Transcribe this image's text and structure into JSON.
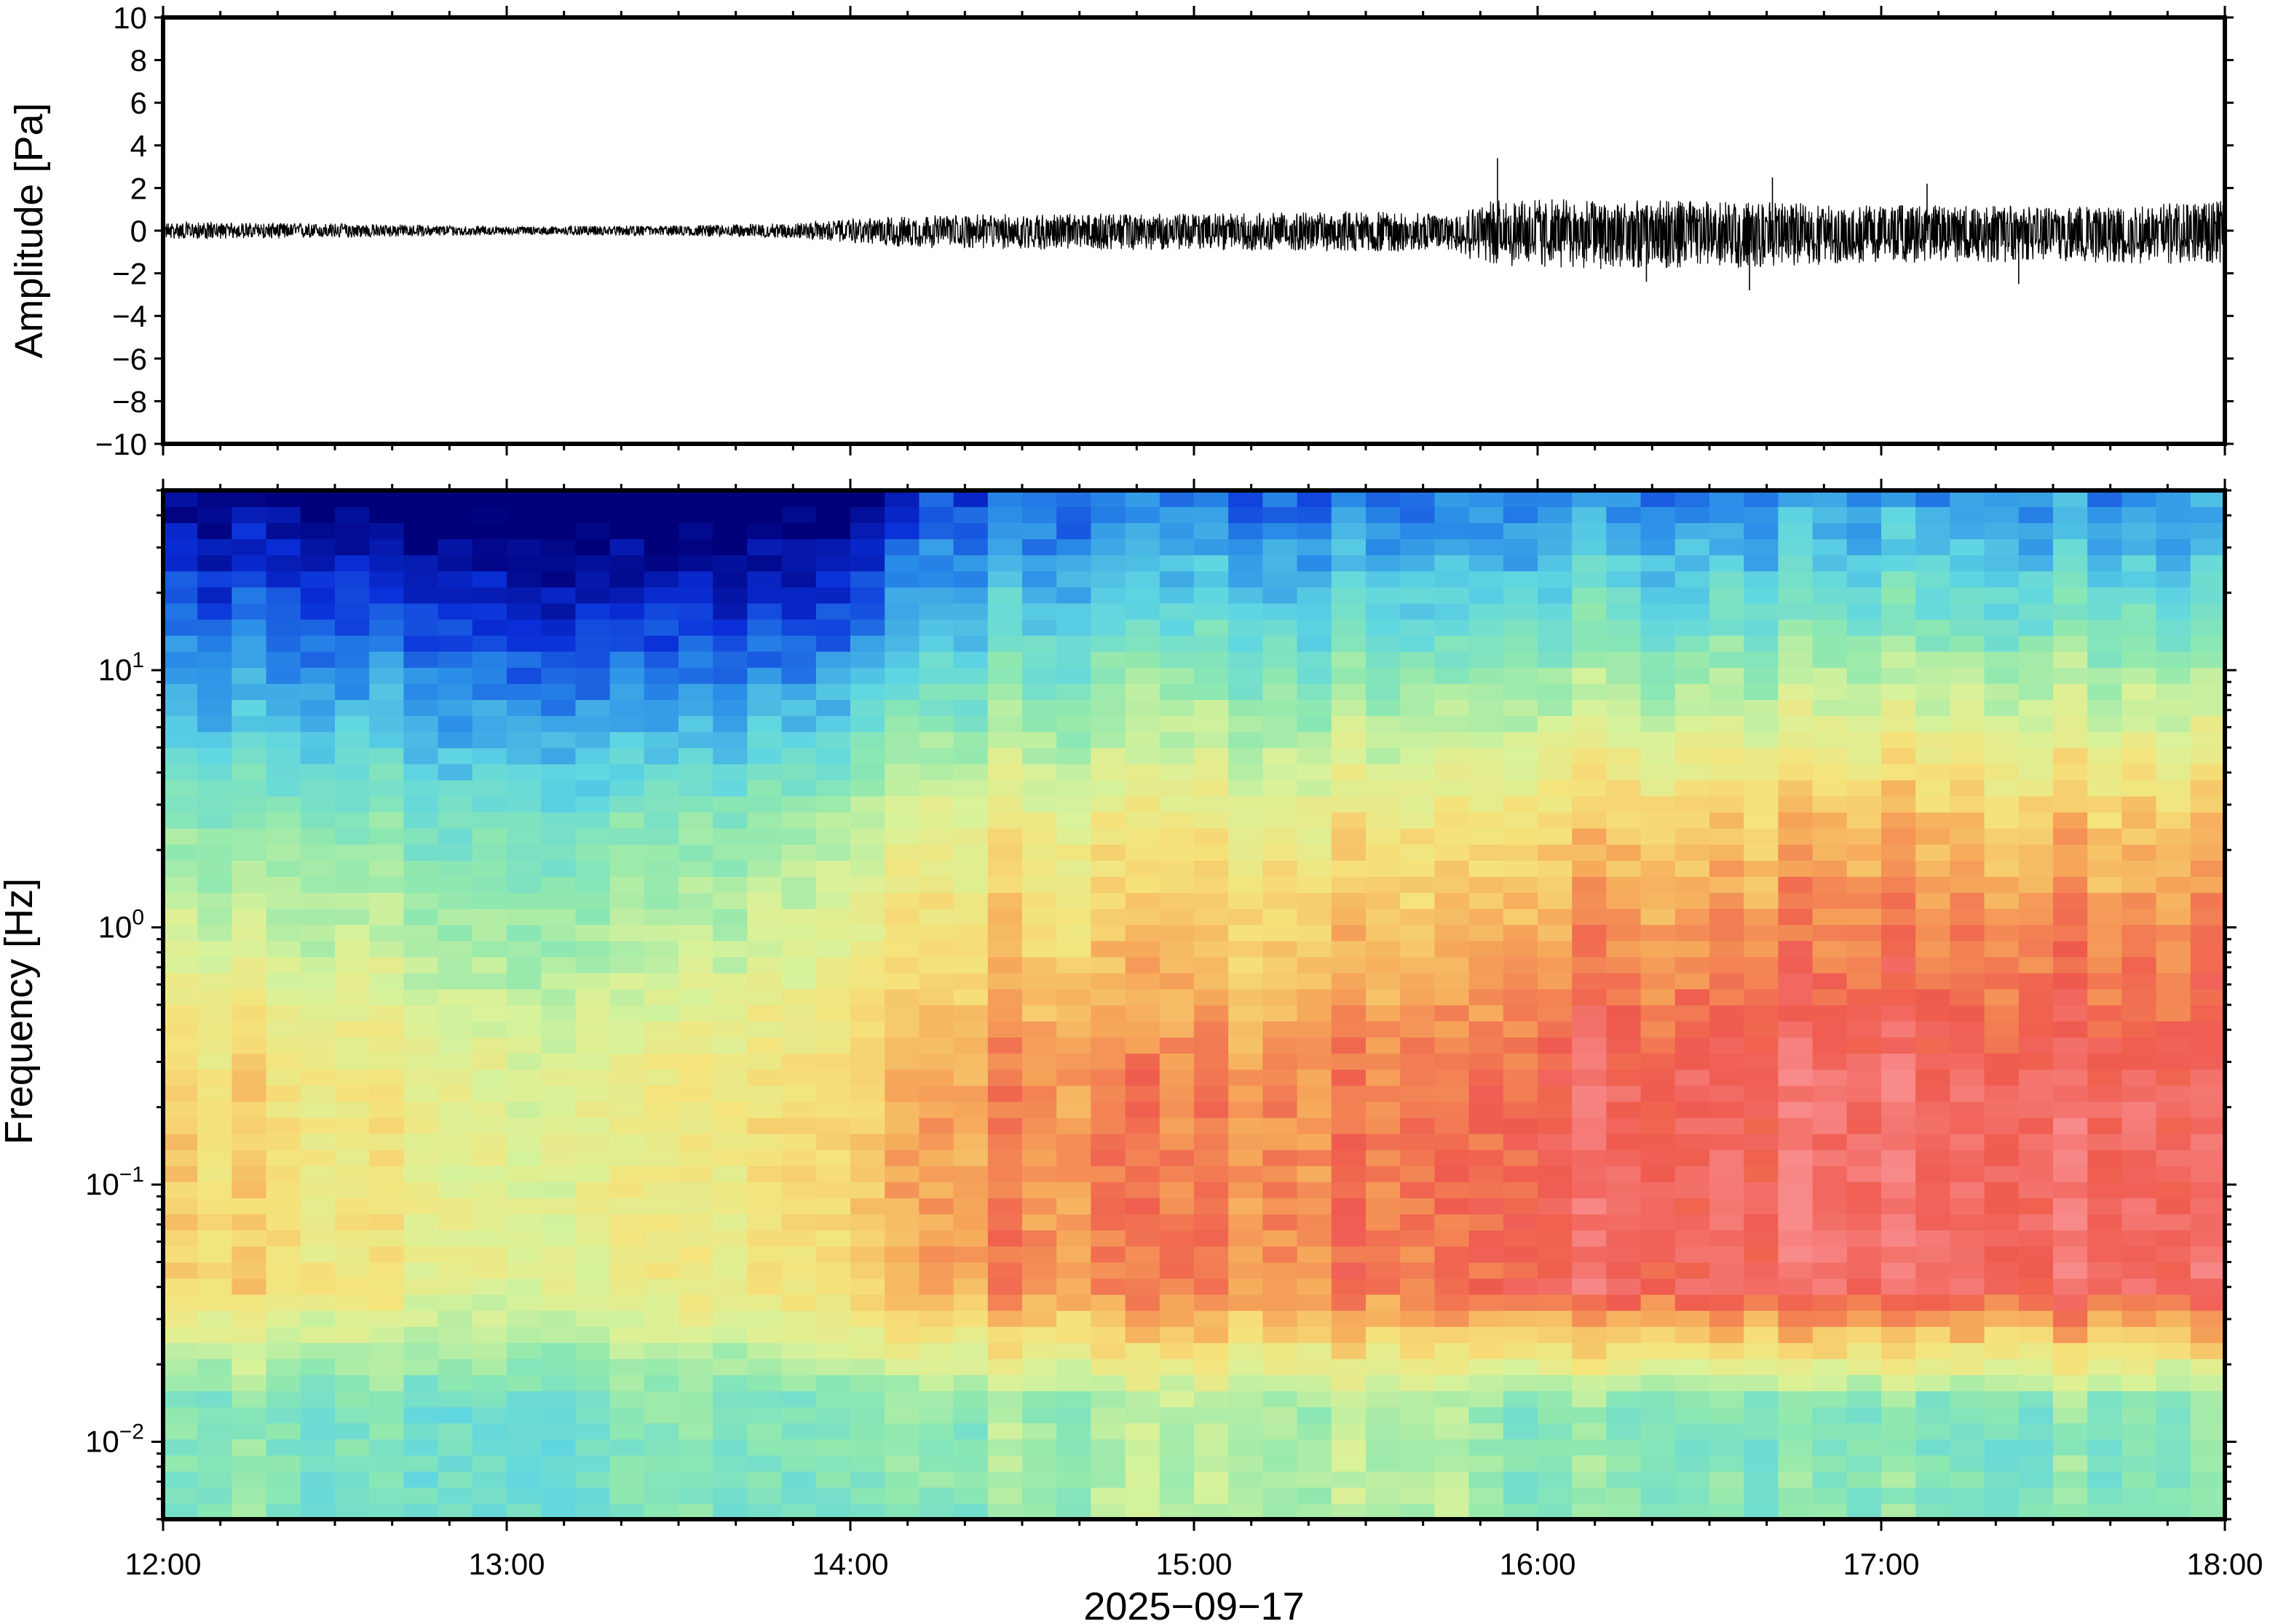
{
  "chart_data": [
    {
      "type": "line",
      "panel": "waveform",
      "ylabel": "Amplitude [Pa]",
      "ylim": [
        -10,
        10
      ],
      "yticks": [
        "10",
        "8",
        "6",
        "4",
        "2",
        "0",
        "−2",
        "−4",
        "−6",
        "−8",
        "−10"
      ],
      "ytick_values": [
        10,
        8,
        6,
        4,
        2,
        0,
        -2,
        -4,
        -6,
        -8,
        -10
      ],
      "xlim": [
        "12:00",
        "18:00"
      ],
      "line_color": "#000000",
      "envelope": {
        "time": [
          "12:00",
          "12:30",
          "13:00",
          "13:30",
          "13:50",
          "14:10",
          "14:30",
          "15:00",
          "15:30",
          "15:45",
          "15:50",
          "16:00",
          "16:30",
          "17:00",
          "17:30",
          "18:00"
        ],
        "amplitude_max": [
          0.4,
          0.35,
          0.2,
          0.25,
          0.35,
          0.7,
          0.8,
          0.8,
          0.9,
          0.8,
          1.4,
          1.5,
          1.4,
          1.2,
          1.2,
          1.4
        ],
        "amplitude_min": [
          -0.4,
          -0.35,
          -0.2,
          -0.25,
          -0.35,
          -0.8,
          -0.9,
          -0.9,
          -1.0,
          -0.9,
          -1.6,
          -1.8,
          -1.8,
          -1.5,
          -1.5,
          -1.6
        ]
      },
      "spikes": [
        {
          "time": "15:53",
          "value": 3.4
        },
        {
          "time": "16:19",
          "value": -2.4
        },
        {
          "time": "16:37",
          "value": -2.8
        },
        {
          "time": "16:41",
          "value": 2.5
        },
        {
          "time": "17:24",
          "value": -2.5
        },
        {
          "time": "17:08",
          "value": 2.2
        }
      ]
    },
    {
      "type": "heatmap",
      "panel": "spectrogram",
      "ylabel": "Frequency [Hz]",
      "yscale": "log",
      "ylim": [
        0.005,
        50
      ],
      "yticks": [
        {
          "base": "10",
          "exp": "−2",
          "value": 0.01
        },
        {
          "base": "10",
          "exp": "−1",
          "value": 0.1
        },
        {
          "base": "10",
          "exp": "0",
          "value": 1
        },
        {
          "base": "10",
          "exp": "1",
          "value": 10
        }
      ],
      "xlabel": "2025−09−17",
      "xticks": [
        "12:00",
        "13:00",
        "14:00",
        "15:00",
        "16:00",
        "17:00",
        "18:00"
      ],
      "xlim": [
        "12:00",
        "18:00"
      ],
      "colormap": "jet",
      "colormap_stops": [
        "#00007a",
        "#0a2fd9",
        "#2a8de8",
        "#5fd6e2",
        "#8ee8b0",
        "#d9f29a",
        "#f6e27a",
        "#f6a85a",
        "#ef5a4e",
        "#f88a8a"
      ],
      "value_range": [
        0,
        1
      ],
      "time_bins": 60,
      "freq_bins": 64,
      "profile_times": [
        "12:00",
        "13:00",
        "13:30",
        "14:00",
        "14:15",
        "15:00",
        "15:45",
        "16:00",
        "17:00",
        "18:00"
      ],
      "high_freq_level": [
        0.18,
        0.14,
        0.08,
        0.16,
        0.32,
        0.35,
        0.36,
        0.4,
        0.4,
        0.42
      ],
      "mid_freq_level": [
        0.45,
        0.42,
        0.4,
        0.52,
        0.6,
        0.63,
        0.65,
        0.72,
        0.74,
        0.74
      ],
      "low_freq_peak_level": [
        0.7,
        0.6,
        0.6,
        0.7,
        0.8,
        0.82,
        0.85,
        0.93,
        0.94,
        0.95
      ],
      "lowest_band_level": [
        0.42,
        0.4,
        0.4,
        0.42,
        0.45,
        0.5,
        0.5,
        0.45,
        0.42,
        0.45
      ]
    }
  ]
}
